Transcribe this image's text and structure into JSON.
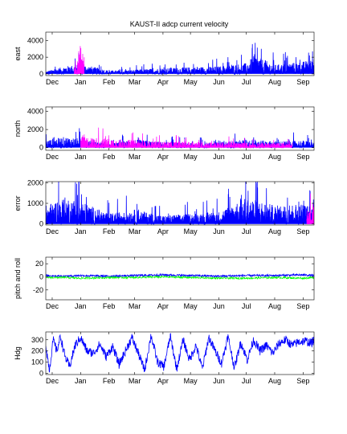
{
  "title": "KAUST-II adcp current velocity",
  "colors": {
    "blue": "#0000ff",
    "magenta": "#ff00ff",
    "green": "#00ff00",
    "olive": "#a0a000",
    "red": "#ff0000"
  },
  "chart_data": [
    {
      "type": "line",
      "id": "east",
      "ylabel": "east",
      "ylim": [
        -200,
        5000
      ],
      "yticks": [
        0,
        2000,
        4000
      ],
      "x_start": "2008-11-24",
      "x_end": "2009-09-13",
      "xtick_labels": [
        "Dec",
        "Jan",
        "Feb",
        "Mar",
        "Apr",
        "May",
        "Jun",
        "Jul",
        "Aug",
        "Sep"
      ],
      "xtick_dates": [
        "2008-12-01",
        "2009-01-01",
        "2009-02-01",
        "2009-03-01",
        "2009-04-01",
        "2009-05-01",
        "2009-06-01",
        "2009-07-01",
        "2009-08-01",
        "2009-09-01"
      ],
      "series": [
        {
          "color": "#0000ff",
          "x": [
            "2008-11-24",
            "2008-12-15",
            "2009-01-01",
            "2009-02-01",
            "2009-03-01",
            "2009-04-01",
            "2009-05-01",
            "2009-06-01",
            "2009-07-01",
            "2009-07-10",
            "2009-08-01",
            "2009-09-01",
            "2009-09-13"
          ],
          "y": [
            300,
            900,
            1200,
            400,
            500,
            700,
            800,
            900,
            1300,
            2200,
            1100,
            1500,
            1700
          ]
        },
        {
          "color": "#ff00ff",
          "x": [
            "2008-12-25",
            "2009-01-01",
            "2009-01-05"
          ],
          "y": [
            1500,
            3500,
            2000
          ]
        }
      ]
    },
    {
      "type": "line",
      "id": "north",
      "ylabel": "north",
      "ylim": [
        -300,
        4500
      ],
      "yticks": [
        0,
        2000,
        4000
      ],
      "x_start": "2008-11-24",
      "x_end": "2009-09-13",
      "xtick_labels": [
        "Dec",
        "Jan",
        "Feb",
        "Mar",
        "Apr",
        "May",
        "Jun",
        "Jul",
        "Aug",
        "Sep"
      ],
      "xtick_dates": [
        "2008-12-01",
        "2009-01-01",
        "2009-02-01",
        "2009-03-01",
        "2009-04-01",
        "2009-05-01",
        "2009-06-01",
        "2009-07-01",
        "2009-08-01",
        "2009-09-01"
      ],
      "series": [
        {
          "color": "#0000ff",
          "x": [
            "2008-11-24",
            "2008-12-15",
            "2009-01-01",
            "2009-02-01",
            "2009-03-01",
            "2009-04-01",
            "2009-05-01",
            "2009-06-01",
            "2009-07-01",
            "2009-08-01",
            "2009-09-01",
            "2009-09-13"
          ],
          "y": [
            800,
            1200,
            1000,
            400,
            900,
            600,
            500,
            600,
            900,
            700,
            800,
            600
          ]
        },
        {
          "color": "#ff00ff",
          "x": [
            "2009-01-01",
            "2009-03-20",
            "2009-08-20"
          ],
          "y": [
            1200,
            700,
            500
          ]
        }
      ]
    },
    {
      "type": "line",
      "id": "error",
      "ylabel": "error",
      "ylim": [
        -50,
        2050
      ],
      "yticks": [
        0,
        1000,
        2000
      ],
      "x_start": "2008-11-24",
      "x_end": "2009-09-13",
      "xtick_labels": [
        "Dec",
        "Jan",
        "Feb",
        "Mar",
        "Apr",
        "May",
        "Jun",
        "Jul",
        "Aug",
        "Sep"
      ],
      "xtick_dates": [
        "2008-12-01",
        "2009-01-01",
        "2009-02-01",
        "2009-03-01",
        "2009-04-01",
        "2009-05-01",
        "2009-06-01",
        "2009-07-01",
        "2009-08-01",
        "2009-09-01"
      ],
      "series": [
        {
          "color": "#0000ff",
          "x": [
            "2008-11-24",
            "2008-12-15",
            "2009-01-01",
            "2009-02-01",
            "2009-03-01",
            "2009-04-01",
            "2009-05-01",
            "2009-06-01",
            "2009-07-01",
            "2009-08-01",
            "2009-09-01",
            "2009-09-13"
          ],
          "y": [
            900,
            1300,
            1100,
            500,
            700,
            400,
            500,
            600,
            1300,
            900,
            1000,
            800
          ]
        },
        {
          "color": "#ff00ff",
          "x": [
            "2009-09-05",
            "2009-09-13"
          ],
          "y": [
            700,
            900
          ]
        }
      ]
    },
    {
      "type": "line",
      "id": "pitch-roll",
      "ylabel": "pitch and roll",
      "ylim": [
        -35,
        30
      ],
      "yticks": [
        -20,
        0,
        20
      ],
      "x_start": "2008-11-24",
      "x_end": "2009-09-13",
      "xtick_labels": [
        "Dec",
        "Jan",
        "Feb",
        "Mar",
        "Apr",
        "May",
        "Jun",
        "Jul",
        "Aug",
        "Sep"
      ],
      "xtick_dates": [
        "2008-12-01",
        "2009-01-01",
        "2009-02-01",
        "2009-03-01",
        "2009-04-01",
        "2009-05-01",
        "2009-06-01",
        "2009-07-01",
        "2009-08-01",
        "2009-09-01"
      ],
      "series": [
        {
          "color": "#0000ff",
          "x": [
            "2008-11-24",
            "2008-12-15",
            "2009-01-01",
            "2009-02-01",
            "2009-03-01",
            "2009-04-01",
            "2009-05-01",
            "2009-06-01",
            "2009-07-01",
            "2009-08-01",
            "2009-09-01",
            "2009-09-13"
          ],
          "y": [
            2,
            1,
            2,
            1,
            2,
            3,
            2,
            1,
            2,
            2,
            3,
            2
          ]
        },
        {
          "color": "#00ff00",
          "x": [
            "2008-11-24",
            "2008-12-15",
            "2009-01-01",
            "2009-02-01",
            "2009-03-01",
            "2009-04-01",
            "2009-05-01",
            "2009-06-01",
            "2009-07-01",
            "2009-08-01",
            "2009-09-01",
            "2009-09-13"
          ],
          "y": [
            -1,
            -1,
            -2,
            -1,
            -1,
            0,
            -1,
            -2,
            -2,
            -1,
            -2,
            -1
          ]
        }
      ]
    },
    {
      "type": "line",
      "id": "heading",
      "ylabel": "Hdg",
      "ylim": [
        -10,
        370
      ],
      "yticks": [
        0,
        100,
        200,
        300
      ],
      "x_start": "2008-11-24",
      "x_end": "2009-09-13",
      "xtick_labels": [
        "Dec",
        "Jan",
        "Feb",
        "Mar",
        "Apr",
        "May",
        "Jun",
        "Jul",
        "Aug",
        "Sep"
      ],
      "xtick_dates": [
        "2008-12-01",
        "2009-01-01",
        "2009-02-01",
        "2009-03-01",
        "2009-04-01",
        "2009-05-01",
        "2009-06-01",
        "2009-07-01",
        "2009-08-01",
        "2009-09-01"
      ],
      "series": [
        {
          "color": "#0000ff",
          "x": [
            "2008-11-24",
            "2008-11-28",
            "2008-12-02",
            "2008-12-06",
            "2008-12-10",
            "2008-12-15",
            "2008-12-20",
            "2008-12-26",
            "2009-01-01",
            "2009-01-08",
            "2009-01-15",
            "2009-01-22",
            "2009-01-29",
            "2009-02-05",
            "2009-02-12",
            "2009-02-19",
            "2009-02-26",
            "2009-03-05",
            "2009-03-12",
            "2009-03-19",
            "2009-03-26",
            "2009-04-02",
            "2009-04-09",
            "2009-04-16",
            "2009-04-23",
            "2009-04-30",
            "2009-05-07",
            "2009-05-14",
            "2009-05-21",
            "2009-05-28",
            "2009-06-04",
            "2009-06-11",
            "2009-06-18",
            "2009-06-25",
            "2009-07-02",
            "2009-07-09",
            "2009-07-16",
            "2009-07-23",
            "2009-07-30",
            "2009-08-06",
            "2009-08-13",
            "2009-08-20",
            "2009-08-27",
            "2009-09-03",
            "2009-09-10",
            "2009-09-13"
          ],
          "y": [
            250,
            30,
            300,
            200,
            330,
            150,
            60,
            250,
            320,
            200,
            180,
            260,
            150,
            240,
            80,
            200,
            320,
            180,
            30,
            340,
            100,
            60,
            330,
            40,
            300,
            120,
            250,
            40,
            320,
            200,
            90,
            330,
            50,
            280,
            120,
            300,
            200,
            250,
            180,
            270,
            300,
            250,
            280,
            290,
            270,
            300
          ]
        }
      ]
    }
  ]
}
